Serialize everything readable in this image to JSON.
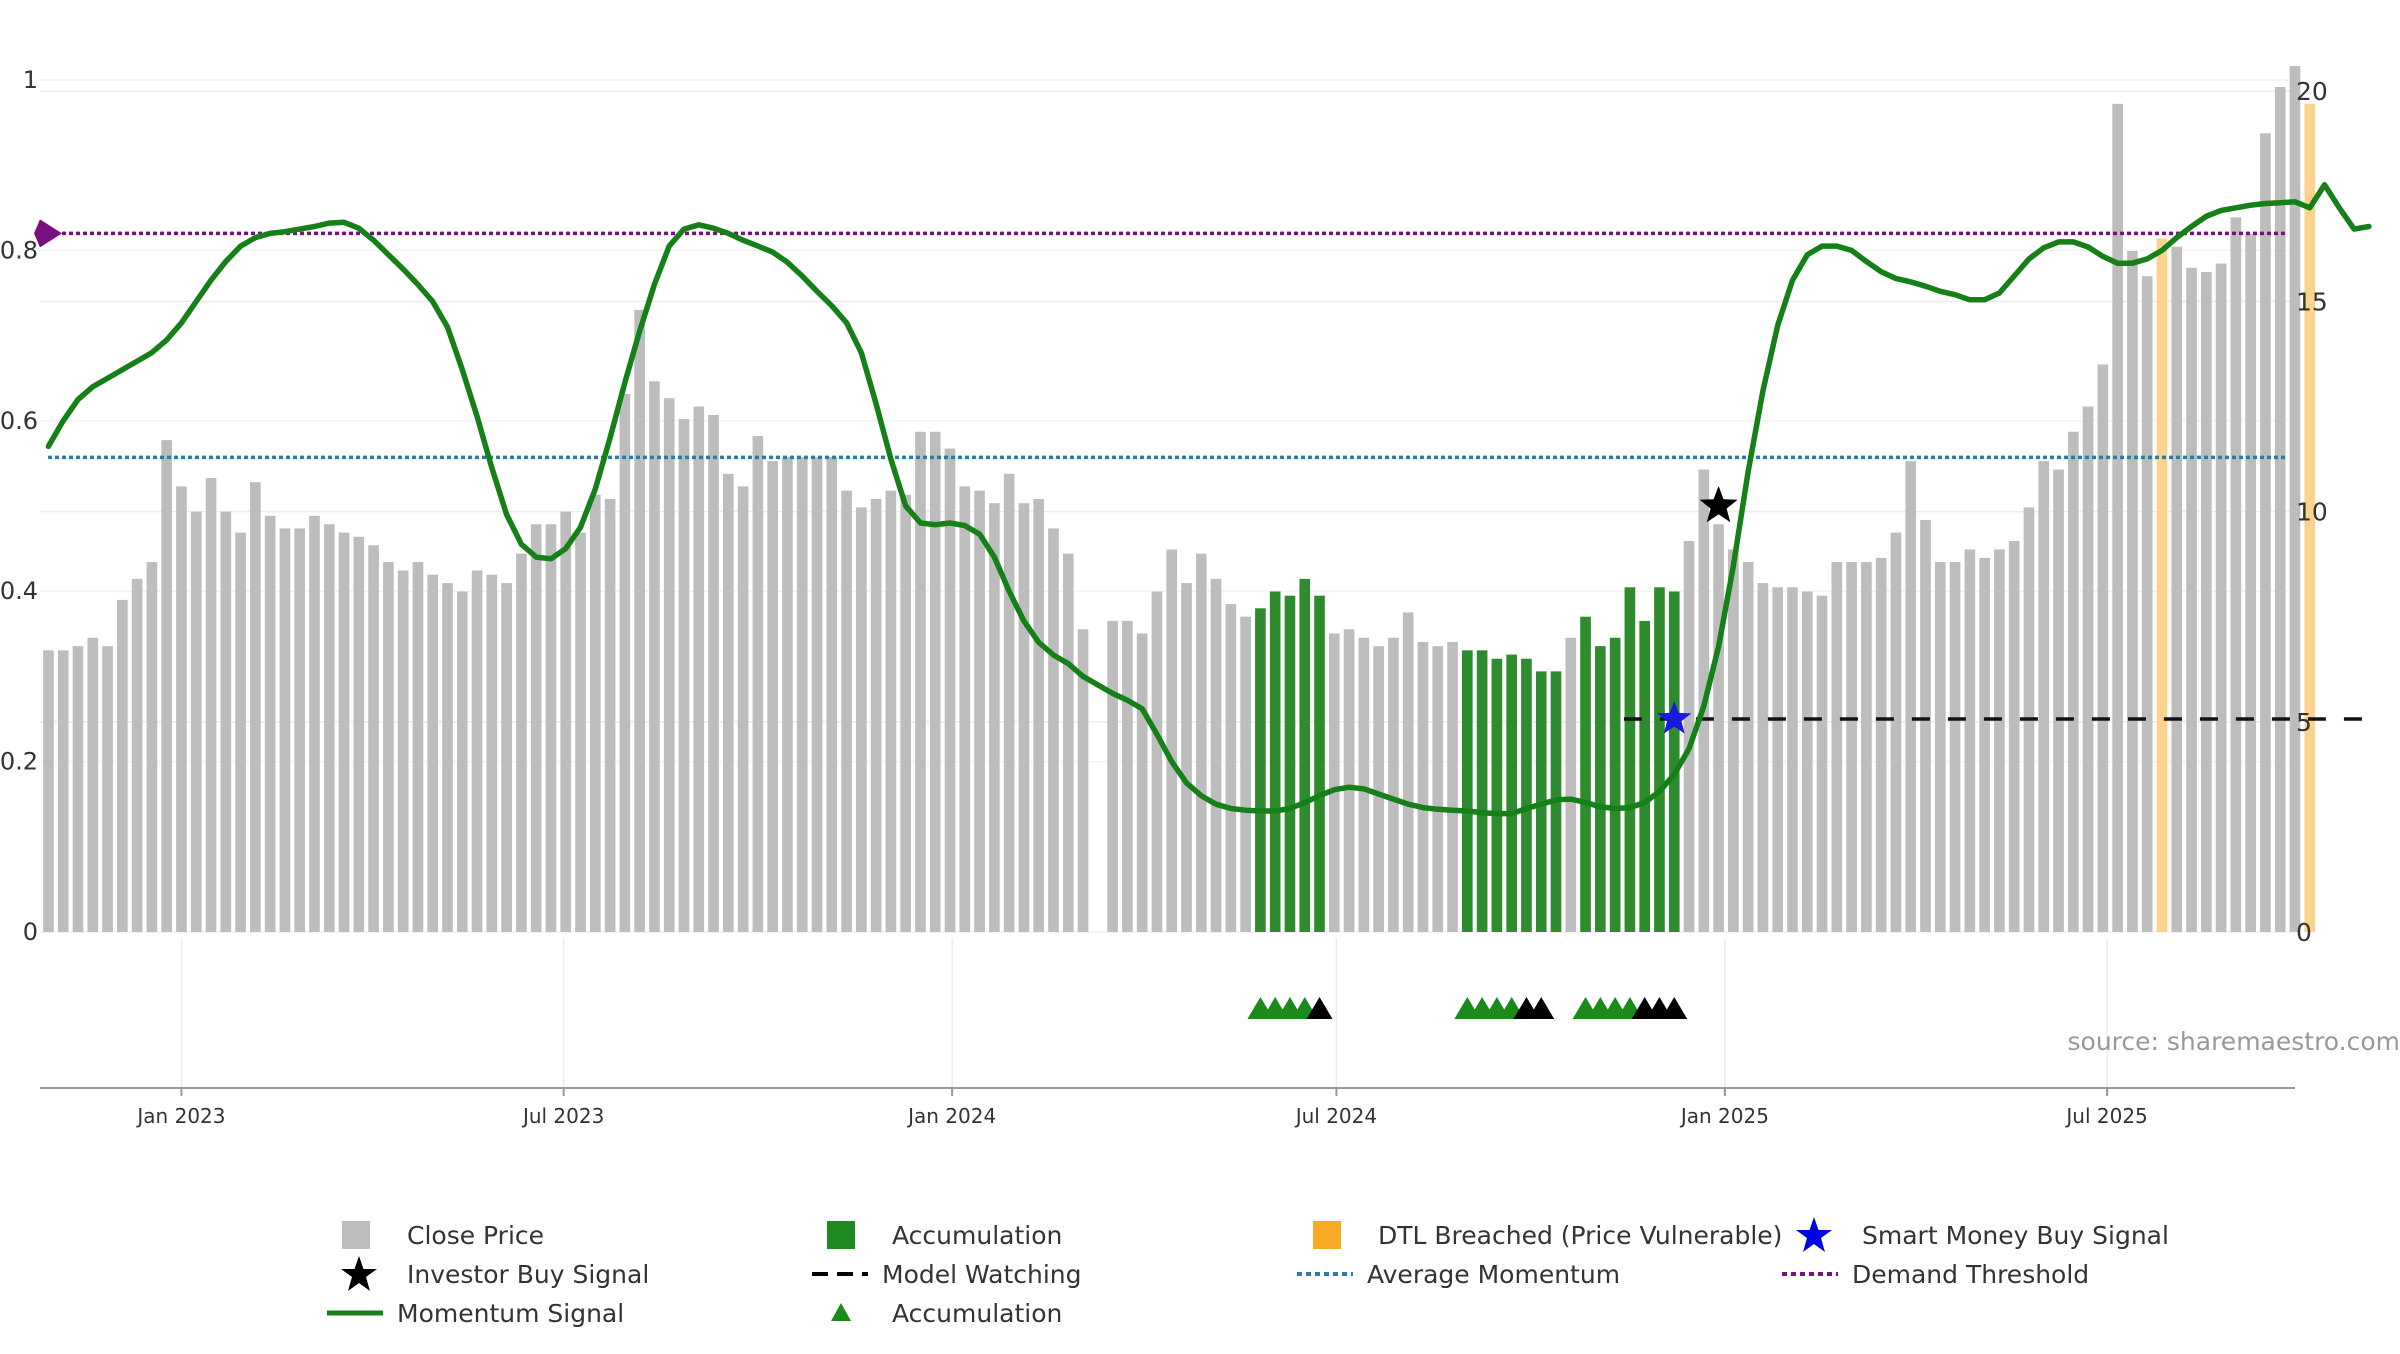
{
  "chart_data": {
    "type": "bar",
    "source_label": "source: sharemaestro.com",
    "left_axis": {
      "ylim": [
        0,
        1
      ],
      "ticks": [
        "0",
        "0.2",
        "0.4",
        "0.6",
        "0.8",
        "1"
      ]
    },
    "right_axis": {
      "ylim": [
        0,
        20.6
      ],
      "ticks": [
        "0",
        "5",
        "10",
        "15",
        "20"
      ]
    },
    "x_ticks": [
      {
        "label": "Jan 2023",
        "date": "2023-01-01"
      },
      {
        "label": "Jul 2023",
        "date": "2023-07-01"
      },
      {
        "label": "Jan 2024",
        "date": "2024-01-01"
      },
      {
        "label": "Jul 2024",
        "date": "2024-07-01"
      },
      {
        "label": "Jan 2025",
        "date": "2025-01-01"
      },
      {
        "label": "Jul 2025",
        "date": "2025-07-01"
      }
    ],
    "x_range": [
      "2022-10-26",
      "2025-09-28"
    ],
    "price_series": {
      "name": "Close Price",
      "start_date": "2022-10-30",
      "interval_days": 7,
      "values": [
        6.7,
        6.7,
        6.8,
        7.0,
        6.8,
        7.9,
        8.4,
        8.8,
        11.7,
        10.6,
        10.0,
        10.8,
        10.0,
        9.5,
        10.7,
        9.9,
        9.6,
        9.6,
        9.9,
        9.7,
        9.5,
        9.4,
        9.2,
        8.8,
        8.6,
        8.8,
        8.5,
        8.3,
        8.1,
        8.6,
        8.5,
        8.3,
        9.0,
        9.7,
        9.7,
        10.0,
        9.5,
        10.4,
        10.3,
        12.8,
        14.8,
        13.1,
        12.7,
        12.2,
        12.5,
        12.3,
        10.9,
        10.6,
        11.8,
        11.2,
        11.3,
        11.3,
        11.3,
        11.3,
        10.5,
        10.1,
        10.3,
        10.5,
        10.4,
        11.9,
        11.9,
        11.5,
        10.6,
        10.5,
        10.2,
        10.9,
        10.2,
        10.3,
        9.6,
        9.0,
        7.2,
        null,
        7.4,
        7.4,
        7.1,
        8.1,
        9.1,
        8.3,
        9.0,
        8.4,
        7.8,
        7.5,
        7.7,
        8.1,
        8.0,
        8.4,
        8.0,
        7.1,
        7.2,
        7.0,
        6.8,
        7.0,
        7.6,
        6.9,
        6.8,
        6.9,
        6.7,
        6.7,
        6.5,
        6.6,
        6.5,
        6.2,
        6.2,
        7.0,
        7.5,
        6.8,
        7.0,
        8.2,
        7.4,
        8.2,
        8.1,
        9.3,
        11.0,
        9.7,
        9.1,
        8.8,
        8.3,
        8.2,
        8.2,
        8.1,
        8.0,
        8.8,
        8.8,
        8.8,
        8.9,
        9.5,
        11.2,
        9.8,
        8.8,
        8.8,
        9.1,
        8.9,
        9.1,
        9.3,
        10.1,
        11.2,
        11.0,
        11.9,
        12.5,
        13.5,
        19.7,
        16.2,
        15.6,
        16.5,
        16.3,
        15.8,
        15.7,
        15.9,
        17.0,
        16.6,
        19.0,
        20.1,
        20.6,
        19.7
      ],
      "accumulation_ranges": [
        [
          82,
          86
        ],
        [
          96,
          102
        ],
        [
          104,
          110
        ]
      ],
      "dtl_breached_ranges": [
        [
          143,
          143
        ],
        [
          153,
          157
        ]
      ]
    },
    "momentum_series": {
      "name": "Momentum Signal",
      "points": [
        [
          0,
          0.57
        ],
        [
          1,
          0.6
        ],
        [
          2,
          0.625
        ],
        [
          3,
          0.64
        ],
        [
          4,
          0.65
        ],
        [
          5,
          0.66
        ],
        [
          6,
          0.67
        ],
        [
          7,
          0.68
        ],
        [
          8,
          0.695
        ],
        [
          9,
          0.715
        ],
        [
          10,
          0.74
        ],
        [
          11,
          0.765
        ],
        [
          12,
          0.787
        ],
        [
          13,
          0.805
        ],
        [
          14,
          0.815
        ],
        [
          15,
          0.82
        ],
        [
          16,
          0.822
        ],
        [
          17,
          0.825
        ],
        [
          18,
          0.828
        ],
        [
          19,
          0.832
        ],
        [
          20,
          0.833
        ],
        [
          21,
          0.826
        ],
        [
          22,
          0.812
        ],
        [
          23,
          0.795
        ],
        [
          24,
          0.778
        ],
        [
          25,
          0.76
        ],
        [
          26,
          0.74
        ],
        [
          27,
          0.71
        ],
        [
          28,
          0.66
        ],
        [
          29,
          0.605
        ],
        [
          30,
          0.545
        ],
        [
          31,
          0.49
        ],
        [
          32,
          0.455
        ],
        [
          33,
          0.44
        ],
        [
          34,
          0.438
        ],
        [
          35,
          0.45
        ],
        [
          36,
          0.475
        ],
        [
          37,
          0.52
        ],
        [
          38,
          0.58
        ],
        [
          39,
          0.645
        ],
        [
          40,
          0.705
        ],
        [
          41,
          0.76
        ],
        [
          42,
          0.805
        ],
        [
          43,
          0.825
        ],
        [
          44,
          0.83
        ],
        [
          45,
          0.826
        ],
        [
          46,
          0.82
        ],
        [
          47,
          0.812
        ],
        [
          48,
          0.805
        ],
        [
          49,
          0.798
        ],
        [
          50,
          0.786
        ],
        [
          51,
          0.77
        ],
        [
          52,
          0.752
        ],
        [
          53,
          0.735
        ],
        [
          54,
          0.715
        ],
        [
          55,
          0.68
        ],
        [
          56,
          0.62
        ],
        [
          57,
          0.555
        ],
        [
          58,
          0.5
        ],
        [
          59,
          0.48
        ],
        [
          60,
          0.478
        ],
        [
          61,
          0.48
        ],
        [
          62,
          0.477
        ],
        [
          63,
          0.467
        ],
        [
          64,
          0.44
        ],
        [
          65,
          0.4
        ],
        [
          66,
          0.365
        ],
        [
          67,
          0.34
        ],
        [
          68,
          0.325
        ],
        [
          69,
          0.315
        ],
        [
          70,
          0.3
        ],
        [
          71,
          0.29
        ],
        [
          72,
          0.28
        ],
        [
          73,
          0.272
        ],
        [
          74,
          0.262
        ],
        [
          75,
          0.232
        ],
        [
          76,
          0.2
        ],
        [
          77,
          0.175
        ],
        [
          78,
          0.16
        ],
        [
          79,
          0.15
        ],
        [
          80,
          0.145
        ],
        [
          81,
          0.143
        ],
        [
          82,
          0.142
        ],
        [
          83,
          0.142
        ],
        [
          84,
          0.145
        ],
        [
          85,
          0.152
        ],
        [
          86,
          0.16
        ],
        [
          87,
          0.167
        ],
        [
          88,
          0.17
        ],
        [
          89,
          0.168
        ],
        [
          90,
          0.162
        ],
        [
          91,
          0.156
        ],
        [
          92,
          0.15
        ],
        [
          93,
          0.146
        ],
        [
          94,
          0.144
        ],
        [
          95,
          0.143
        ],
        [
          96,
          0.142
        ],
        [
          97,
          0.14
        ],
        [
          98,
          0.139
        ],
        [
          99,
          0.139
        ],
        [
          100,
          0.145
        ],
        [
          101,
          0.15
        ],
        [
          102,
          0.155
        ],
        [
          103,
          0.156
        ],
        [
          104,
          0.152
        ],
        [
          105,
          0.147
        ],
        [
          106,
          0.145
        ],
        [
          107,
          0.146
        ],
        [
          108,
          0.152
        ],
        [
          109,
          0.165
        ],
        [
          110,
          0.185
        ],
        [
          111,
          0.215
        ],
        [
          112,
          0.265
        ],
        [
          113,
          0.335
        ],
        [
          114,
          0.43
        ],
        [
          115,
          0.54
        ],
        [
          116,
          0.635
        ],
        [
          117,
          0.712
        ],
        [
          118,
          0.765
        ],
        [
          119,
          0.795
        ],
        [
          120,
          0.805
        ],
        [
          121,
          0.805
        ],
        [
          122,
          0.8
        ],
        [
          123,
          0.787
        ],
        [
          124,
          0.775
        ],
        [
          125,
          0.767
        ],
        [
          126,
          0.763
        ],
        [
          127,
          0.758
        ],
        [
          128,
          0.752
        ],
        [
          129,
          0.748
        ],
        [
          130,
          0.742
        ],
        [
          131,
          0.742
        ],
        [
          132,
          0.75
        ],
        [
          133,
          0.77
        ],
        [
          134,
          0.79
        ],
        [
          135,
          0.803
        ],
        [
          136,
          0.81
        ],
        [
          137,
          0.81
        ],
        [
          138,
          0.804
        ],
        [
          139,
          0.793
        ],
        [
          140,
          0.785
        ],
        [
          141,
          0.785
        ],
        [
          142,
          0.79
        ],
        [
          143,
          0.8
        ],
        [
          144,
          0.815
        ],
        [
          145,
          0.828
        ],
        [
          146,
          0.84
        ],
        [
          147,
          0.847
        ],
        [
          148,
          0.85
        ],
        [
          149,
          0.853
        ],
        [
          150,
          0.855
        ],
        [
          151,
          0.856
        ],
        [
          152,
          0.857
        ],
        [
          153,
          0.85
        ],
        [
          154,
          0.877
        ],
        [
          155,
          0.85
        ],
        [
          156,
          0.825
        ],
        [
          157,
          0.828
        ]
      ]
    },
    "average_momentum": {
      "name": "Average Momentum",
      "value": 0.557
    },
    "demand_threshold": {
      "name": "Demand Threshold",
      "value": 0.82
    },
    "model_watching": {
      "name": "Model Watching",
      "value": 0.25,
      "start_index": 107,
      "end_index": 157
    },
    "investor_buy_signal": {
      "name": "Investor Buy Signal",
      "index": 113,
      "value": 0.5
    },
    "smart_money_buy_signal": {
      "name": "Smart Money Buy Signal",
      "index": 110,
      "value": 0.25
    },
    "accumulation_markers": {
      "name": "Accumulation",
      "green": [
        82,
        83,
        84,
        85,
        96,
        97,
        98,
        99,
        104,
        105,
        106,
        107
      ],
      "black": [
        86,
        100,
        101,
        108,
        109,
        110
      ]
    },
    "colors": {
      "close_price": "#bdbdbd",
      "accumulation": "#2e8b2e",
      "dtl_breached": "#fbd38d",
      "momentum": "#168018",
      "average_momentum": "#2a7ca8",
      "demand_threshold": "#7a1080",
      "model_watching": "#111111",
      "smart_money": "#1a1adf",
      "investor": "#000000"
    },
    "legend": [
      {
        "label": "Close Price",
        "icon": "gray-square-icon"
      },
      {
        "label": "Accumulation",
        "icon": "green-square-icon"
      },
      {
        "label": "DTL Breached (Price Vulnerable)",
        "icon": "orange-square-icon"
      },
      {
        "label": "Smart Money Buy Signal",
        "icon": "blue-star-icon"
      },
      {
        "label": "Investor Buy Signal",
        "icon": "black-star-icon"
      },
      {
        "label": "Model Watching",
        "icon": "dashed-line-icon"
      },
      {
        "label": "Average Momentum",
        "icon": "dotted-blue-line-icon"
      },
      {
        "label": "Demand Threshold",
        "icon": "dotted-purple-line-icon"
      },
      {
        "label": "Momentum Signal",
        "icon": "green-line-icon"
      },
      {
        "label": "Accumulation",
        "icon": "green-triangle-icon"
      }
    ]
  }
}
